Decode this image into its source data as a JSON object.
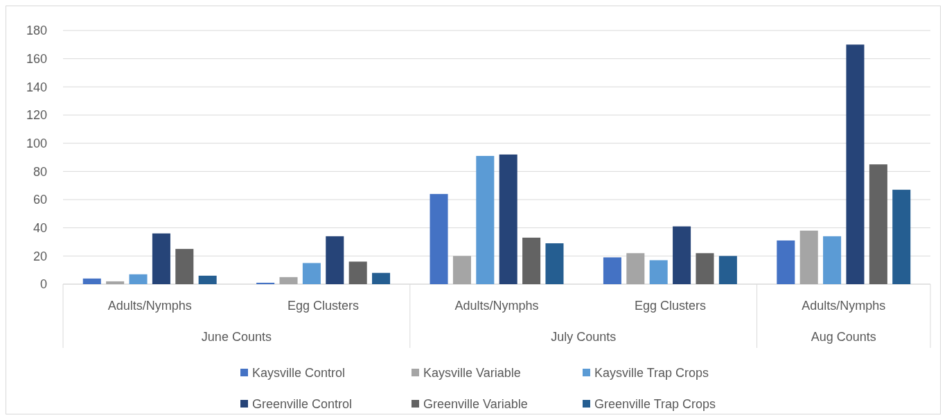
{
  "chart_data": {
    "type": "bar",
    "categories": [
      "Adults/Nymphs",
      "Egg Clusters",
      "Adults/Nymphs",
      "Egg Clusters",
      "Adults/Nymphs"
    ],
    "annotations": [
      "June Counts",
      "July Counts",
      "Aug Counts"
    ],
    "series": [
      {
        "name": "Kaysville Control",
        "color": "#4472c4",
        "values": [
          4,
          1,
          64,
          19,
          31
        ]
      },
      {
        "name": "Kaysville Variable",
        "color": "#a5a5a5",
        "values": [
          2,
          5,
          20,
          22,
          38
        ]
      },
      {
        "name": "Kaysville Trap Crops",
        "color": "#5b9bd5",
        "values": [
          7,
          15,
          91,
          17,
          34
        ]
      },
      {
        "name": "Greenville Control",
        "color": "#264478",
        "values": [
          36,
          34,
          92,
          41,
          170
        ]
      },
      {
        "name": "Greenville Variable",
        "color": "#636363",
        "values": [
          25,
          16,
          33,
          22,
          85
        ]
      },
      {
        "name": "Greenville Trap Crops",
        "color": "#255e91",
        "values": [
          6,
          8,
          29,
          20,
          67
        ]
      }
    ],
    "ylim": [
      0,
      180
    ],
    "yticks": [
      0,
      20,
      40,
      60,
      80,
      100,
      120,
      140,
      160,
      180
    ],
    "grid": "y",
    "legend": "bottom"
  }
}
